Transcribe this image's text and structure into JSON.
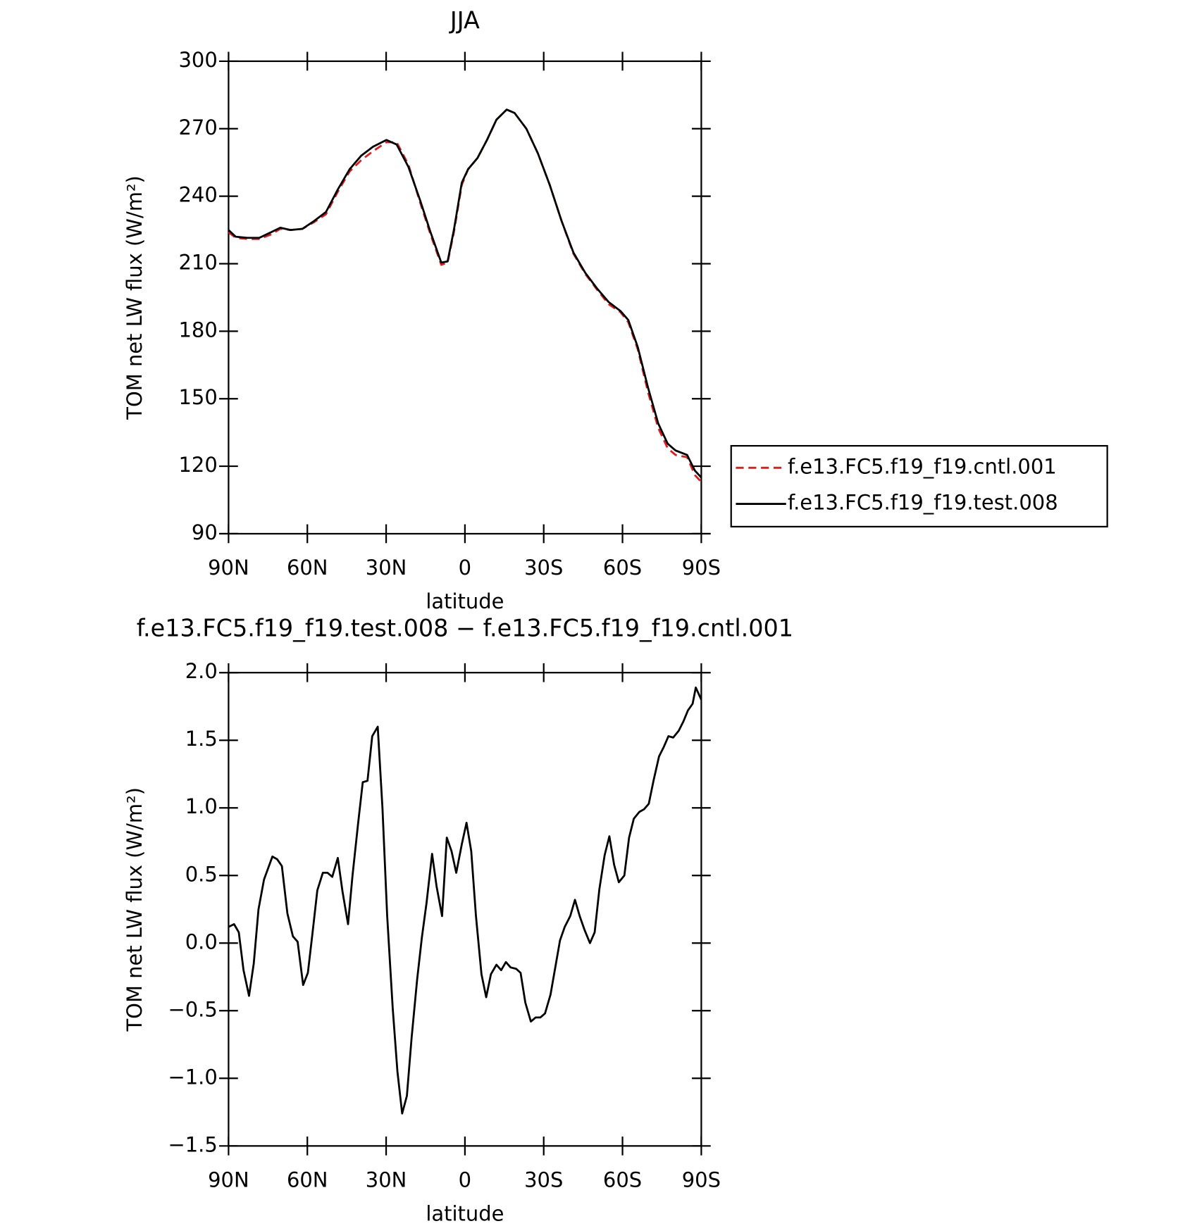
{
  "chart_data": [
    {
      "type": "line",
      "title": "JJA",
      "xlabel": "latitude",
      "ylabel": "TOM net LW flux (W/m²)",
      "x": [
        90,
        87.3,
        82.8,
        78.3,
        73.8,
        70.3,
        66.4,
        61.9,
        57.4,
        52.9,
        48.4,
        43.9,
        39.5,
        35.0,
        29.9,
        26.0,
        21.5,
        17.0,
        13.1,
        9.0,
        6.6,
        4.2,
        1.2,
        -1.2,
        -4.8,
        -8.4,
        -12.0,
        -15.9,
        -18.9,
        -23.4,
        -27.8,
        -32.3,
        -36.8,
        -41.3,
        -45.8,
        -50.3,
        -54.7,
        -59.2,
        -62.2,
        -65.8,
        -69.7,
        -73.6,
        -77.2,
        -80.2,
        -84.6,
        -87.6,
        -90
      ],
      "series": [
        {
          "name": "f.e13.FC5.f19_f19.cntl.001",
          "color": "#e41a1c",
          "dashed": true,
          "values": [
            224,
            221.5,
            221,
            221,
            223,
            225.5,
            225,
            225.5,
            228.5,
            232,
            242,
            251,
            256,
            260,
            264,
            264,
            254,
            237,
            223,
            209.5,
            210.5,
            224,
            245,
            252,
            257,
            265,
            274,
            278.5,
            277,
            270,
            259,
            245,
            229,
            214.5,
            205.5,
            198.5,
            192,
            188.5,
            184,
            172,
            153,
            137,
            128,
            125,
            124,
            116,
            113
          ]
        },
        {
          "name": "f.e13.FC5.f19_f19.test.008",
          "color": "#000000",
          "dashed": false,
          "values": [
            225,
            222,
            221.5,
            221.5,
            224,
            226,
            225,
            225.5,
            229,
            233,
            243,
            252,
            258,
            262,
            265,
            263,
            253,
            238,
            224,
            210.5,
            211,
            225,
            246,
            252,
            257,
            265,
            274,
            278.5,
            277,
            270,
            259,
            245,
            229,
            215,
            206,
            199,
            193,
            189,
            185,
            173,
            155,
            139,
            130,
            127,
            125,
            118,
            115
          ]
        }
      ],
      "xlim": [
        90,
        -90
      ],
      "xticks": [
        {
          "value": 90,
          "label": "90N"
        },
        {
          "value": 60,
          "label": "60N"
        },
        {
          "value": 30,
          "label": "30N"
        },
        0,
        {
          "value": -30,
          "label": "30S"
        },
        {
          "value": -60,
          "label": "60S"
        },
        {
          "value": -90,
          "label": "90S"
        }
      ],
      "ylim": [
        90,
        300
      ],
      "yticks": [
        90,
        120,
        150,
        180,
        210,
        240,
        270,
        300
      ],
      "legend": "right"
    },
    {
      "type": "line",
      "title": "f.e13.FC5.f19_f19.test.008 − f.e13.FC5.f19_f19.cntl.001",
      "xlabel": "latitude",
      "ylabel": "TOM net LW flux (W/m²)",
      "x": [
        90,
        87.9,
        86.1,
        84.3,
        82.2,
        80.4,
        78.6,
        76.5,
        73.3,
        71.5,
        69.7,
        67.6,
        65.5,
        63.7,
        61.6,
        59.8,
        58.0,
        56.2,
        54.1,
        52.3,
        50.5,
        48.4,
        46.6,
        44.5,
        42.8,
        40.7,
        38.9,
        37.1,
        35.3,
        33.2,
        31.4,
        29.6,
        27.5,
        25.7,
        23.9,
        22.1,
        20.3,
        18.2,
        16.4,
        14.6,
        12.5,
        10.8,
        8.7,
        6.9,
        5.1,
        3.3,
        1.2,
        -0.6,
        -2.4,
        -4.2,
        -6.3,
        -8.1,
        -9.9,
        -12.0,
        -13.8,
        -15.6,
        -17.4,
        -19.5,
        -21.2,
        -23.0,
        -25.1,
        -26.9,
        -28.7,
        -30.5,
        -32.6,
        -34.4,
        -36.2,
        -38.0,
        -40.1,
        -41.9,
        -43.7,
        -45.5,
        -47.6,
        -49.4,
        -51.2,
        -53.2,
        -55.0,
        -56.8,
        -58.6,
        -60.7,
        -62.5,
        -64.3,
        -66.4,
        -68.2,
        -70.0,
        -71.8,
        -73.9,
        -75.7,
        -77.5,
        -79.3,
        -81.4,
        -83.2,
        -84.9,
        -86.7,
        -87.9,
        -90
      ],
      "series": [
        {
          "color": "#000000",
          "dashed": false,
          "values": [
            0.12,
            0.14,
            0.08,
            -0.2,
            -0.39,
            -0.15,
            0.25,
            0.47,
            0.64,
            0.62,
            0.57,
            0.22,
            0.05,
            0.01,
            -0.31,
            -0.22,
            0.08,
            0.39,
            0.52,
            0.52,
            0.49,
            0.63,
            0.38,
            0.14,
            0.5,
            0.88,
            1.19,
            1.2,
            1.53,
            1.6,
            1.0,
            0.2,
            -0.48,
            -0.95,
            -1.26,
            -1.13,
            -0.7,
            -0.27,
            0.04,
            0.3,
            0.66,
            0.42,
            0.2,
            0.78,
            0.68,
            0.52,
            0.73,
            0.89,
            0.68,
            0.2,
            -0.23,
            -0.4,
            -0.23,
            -0.16,
            -0.2,
            -0.14,
            -0.18,
            -0.19,
            -0.22,
            -0.44,
            -0.58,
            -0.55,
            -0.55,
            -0.52,
            -0.38,
            -0.18,
            0.02,
            0.12,
            0.2,
            0.32,
            0.2,
            0.1,
            0,
            0.08,
            0.4,
            0.65,
            0.79,
            0.58,
            0.45,
            0.5,
            0.78,
            0.92,
            0.97,
            0.99,
            1.03,
            1.2,
            1.38,
            1.45,
            1.53,
            1.52,
            1.57,
            1.64,
            1.72,
            1.77,
            1.89,
            1.8
          ]
        }
      ],
      "xlim": [
        90,
        -90
      ],
      "xticks": [
        {
          "value": 90,
          "label": "90N"
        },
        {
          "value": 60,
          "label": "60N"
        },
        {
          "value": 30,
          "label": "30N"
        },
        0,
        {
          "value": -30,
          "label": "30S"
        },
        {
          "value": -60,
          "label": "60S"
        },
        {
          "value": -90,
          "label": "90S"
        }
      ],
      "ylim": [
        -1.5,
        2.0
      ],
      "yticks": [
        {
          "value": -1.5,
          "label": "−1.5"
        },
        {
          "value": -1.0,
          "label": "−1.0"
        },
        {
          "value": -0.5,
          "label": "−0.5"
        },
        {
          "value": 0,
          "label": "0.0"
        },
        0.5,
        {
          "value": 1.0,
          "label": "1.0"
        },
        1.5,
        {
          "value": 2.0,
          "label": "2.0"
        }
      ]
    }
  ]
}
